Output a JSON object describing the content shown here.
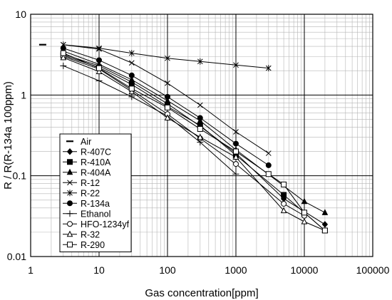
{
  "chart_data": {
    "type": "line",
    "xlabel": "Gas concentration[ppm]",
    "ylabel": "R / R(R-134a 100ppm)",
    "x_scale": "log",
    "y_scale": "log",
    "xlim": [
      1,
      100000
    ],
    "ylim": [
      0.01,
      10
    ],
    "x_ticks": [
      "1",
      "10",
      "100",
      "1000",
      "10000",
      "100000"
    ],
    "y_ticks": [
      "10",
      "1",
      "0.1",
      "0.01"
    ],
    "grid": true,
    "legend_position": "bottom-left",
    "series": [
      {
        "name": "Air",
        "marker": "dash",
        "x": [
          1.5
        ],
        "y": [
          4.2
        ]
      },
      {
        "name": "R-407C",
        "marker": "filled-diamond",
        "x": [
          3,
          10,
          30,
          100,
          300,
          1000,
          5000,
          20000
        ],
        "y": [
          3.2,
          2.3,
          1.45,
          0.78,
          0.41,
          0.19,
          0.052,
          0.025
        ]
      },
      {
        "name": "R-410A",
        "marker": "filled-square",
        "x": [
          3,
          10,
          30,
          100,
          300,
          1000,
          5000,
          20000
        ],
        "y": [
          3.1,
          2.2,
          1.35,
          0.72,
          0.42,
          0.18,
          0.058,
          0.021
        ]
      },
      {
        "name": "R-404A",
        "marker": "filled-triangle",
        "x": [
          3,
          10,
          30,
          100,
          300,
          1000,
          10000,
          20000
        ],
        "y": [
          3.5,
          2.4,
          1.55,
          0.85,
          0.48,
          0.21,
          0.048,
          0.035
        ]
      },
      {
        "name": "R-12",
        "marker": "x",
        "x": [
          3,
          10,
          30,
          100,
          300,
          1000,
          3000
        ],
        "y": [
          4.2,
          3.7,
          2.5,
          1.4,
          0.75,
          0.35,
          0.19
        ]
      },
      {
        "name": "R-22",
        "marker": "star",
        "x": [
          3,
          10,
          30,
          100,
          300,
          1000,
          3000
        ],
        "y": [
          4.2,
          3.8,
          3.3,
          2.85,
          2.6,
          2.35,
          2.15
        ]
      },
      {
        "name": "R-134a",
        "marker": "filled-circle",
        "x": [
          3,
          10,
          30,
          100,
          300,
          1000,
          3000
        ],
        "y": [
          3.8,
          2.7,
          1.75,
          0.95,
          0.52,
          0.25,
          0.135
        ]
      },
      {
        "name": "Ethanol",
        "marker": "plus",
        "x": [
          3,
          10,
          30,
          100,
          300,
          1000
        ],
        "y": [
          2.3,
          1.5,
          0.95,
          0.55,
          0.26,
          0.105
        ]
      },
      {
        "name": "HFO-1234yf",
        "marker": "open-circle",
        "x": [
          3,
          10,
          30,
          100,
          300,
          1000,
          5000,
          10000
        ],
        "y": [
          3.0,
          2.1,
          1.15,
          0.58,
          0.29,
          0.14,
          0.045,
          0.032
        ]
      },
      {
        "name": "R-32",
        "marker": "open-triangle",
        "x": [
          3,
          10,
          30,
          100,
          300,
          1000,
          5000,
          10000,
          20000
        ],
        "y": [
          2.9,
          1.95,
          1.1,
          0.52,
          0.3,
          0.17,
          0.037,
          0.027,
          0.021
        ]
      },
      {
        "name": "R-290",
        "marker": "open-square",
        "x": [
          3,
          10,
          30,
          100,
          300,
          1000,
          3000,
          5000,
          10000,
          20000
        ],
        "y": [
          3.3,
          2.15,
          1.2,
          0.7,
          0.38,
          0.2,
          0.105,
          0.078,
          0.035,
          0.021
        ]
      }
    ]
  }
}
